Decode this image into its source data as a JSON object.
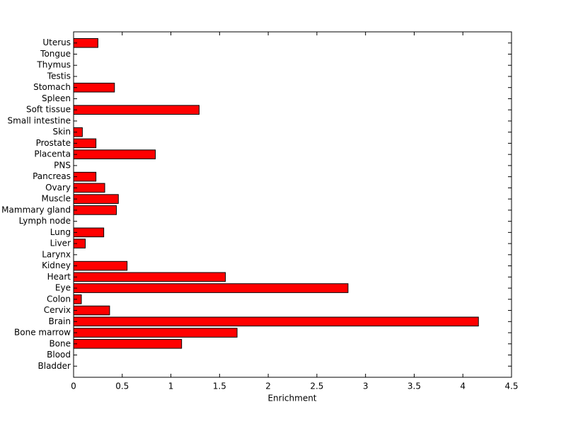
{
  "chart_data": {
    "type": "barh",
    "x_label": "Enrichment",
    "categories": [
      "Bladder",
      "Blood",
      "Bone",
      "Bone marrow",
      "Brain",
      "Cervix",
      "Colon",
      "Eye",
      "Heart",
      "Kidney",
      "Larynx",
      "Liver",
      "Lung",
      "Lymph node",
      "Mammary gland",
      "Muscle",
      "Ovary",
      "Pancreas",
      "PNS",
      "Placenta",
      "Prostate",
      "Skin",
      "Small intestine",
      "Soft tissue",
      "Spleen",
      "Stomach",
      "Testis",
      "Thymus",
      "Tongue",
      "Uterus"
    ],
    "values": [
      0,
      0,
      1.11,
      1.68,
      4.16,
      0.37,
      0.08,
      2.82,
      1.56,
      0.55,
      0,
      0.12,
      0.31,
      0,
      0.44,
      0.46,
      0.32,
      0.23,
      0,
      0.84,
      0.23,
      0.09,
      0,
      1.29,
      0,
      0.42,
      0,
      0,
      0,
      0.25
    ],
    "color": "#ff0000",
    "xlim": [
      0,
      4.5
    ],
    "xticks": [
      0,
      0.5,
      1,
      1.5,
      2,
      2.5,
      3,
      3.5,
      4,
      4.5
    ]
  }
}
